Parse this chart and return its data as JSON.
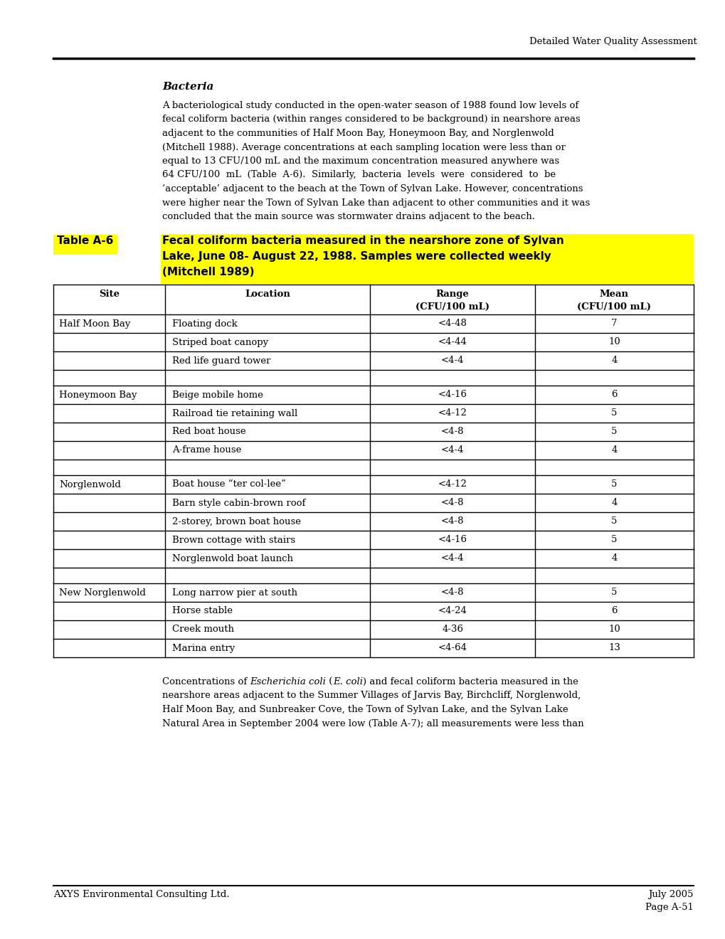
{
  "page_header": "Detailed Water Quality Assessment",
  "bacteria_heading": "Bacteria",
  "body_lines": [
    "A bacteriological study conducted in the open-water season of 1988 found low levels of",
    "fecal coliform bacteria (within ranges considered to be background) in nearshore areas",
    "adjacent to the communities of Half Moon Bay, Honeymoon Bay, and Norglenwold",
    "(Mitchell 1988). Average concentrations at each sampling location were less than or",
    "equal to 13 CFU/100 mL and the maximum concentration measured anywhere was",
    "64 CFU/100  mL  (Table  A-6).  Similarly,  bacteria  levels  were  considered  to  be",
    "‘acceptable’ adjacent to the beach at the Town of Sylvan Lake. However, concentrations",
    "were higher near the Town of Sylvan Lake than adjacent to other communities and it was",
    "concluded that the main source was stormwater drains adjacent to the beach."
  ],
  "table_label": "Table A-6",
  "caption_lines": [
    "Fecal coliform bacteria measured in the nearshore zone of Sylvan",
    "Lake, June 08- August 22, 1988. Samples were collected weekly",
    "(Mitchell 1989)"
  ],
  "col_headers_line1": [
    "Site",
    "Location",
    "Range",
    "Mean"
  ],
  "col_headers_line2": [
    "",
    "",
    "(CFU/100 mL)",
    "(CFU/100 mL)"
  ],
  "table_data": [
    [
      "Half Moon Bay",
      "Floating dock",
      "<4-48",
      "7"
    ],
    [
      "",
      "Striped boat canopy",
      "<4-44",
      "10"
    ],
    [
      "",
      "Red life guard tower",
      "<4-4",
      "4"
    ],
    [
      "",
      "",
      "",
      ""
    ],
    [
      "Honeymoon Bay",
      "Beige mobile home",
      "<4-16",
      "6"
    ],
    [
      "",
      "Railroad tie retaining wall",
      "<4-12",
      "5"
    ],
    [
      "",
      "Red boat house",
      "<4-8",
      "5"
    ],
    [
      "",
      "A-frame house",
      "<4-4",
      "4"
    ],
    [
      "",
      "",
      "",
      ""
    ],
    [
      "Norglenwold",
      "Boat house “ter col-lee”",
      "<4-12",
      "5"
    ],
    [
      "",
      "Barn style cabin-brown roof",
      "<4-8",
      "4"
    ],
    [
      "",
      "2-storey, brown boat house",
      "<4-8",
      "5"
    ],
    [
      "",
      "Brown cottage with stairs",
      "<4-16",
      "5"
    ],
    [
      "",
      "Norglenwold boat launch",
      "<4-4",
      "4"
    ],
    [
      "",
      "",
      "",
      ""
    ],
    [
      "New Norglenwold",
      "Long narrow pier at south",
      "<4-8",
      "5"
    ],
    [
      "",
      "Horse stable",
      "<4-24",
      "6"
    ],
    [
      "",
      "Creek mouth",
      "4-36",
      "10"
    ],
    [
      "",
      "Marina entry",
      "<4-64",
      "13"
    ]
  ],
  "footer_para_lines": [
    [
      "Concentrations of ",
      "Escherichia coli",
      " (",
      "E. coli",
      ") and fecal coliform bacteria measured in the"
    ],
    [
      "nearshore areas adjacent to the Summer Villages of Jarvis Bay, Birchcliff, Norglenwold,"
    ],
    [
      "Half Moon Bay, and Sunbreaker Cove, the Town of Sylvan Lake, and the Sylvan Lake"
    ],
    [
      "Natural Area in September 2004 were low (Table A-7); all measurements were less than"
    ]
  ],
  "footer_left": "AXYS Environmental Consulting Ltd.",
  "footer_right1": "July 2005",
  "footer_right2": "Page A-51",
  "bg_color": "#ffffff",
  "highlight_color": "#ffff00",
  "text_color": "#000000"
}
